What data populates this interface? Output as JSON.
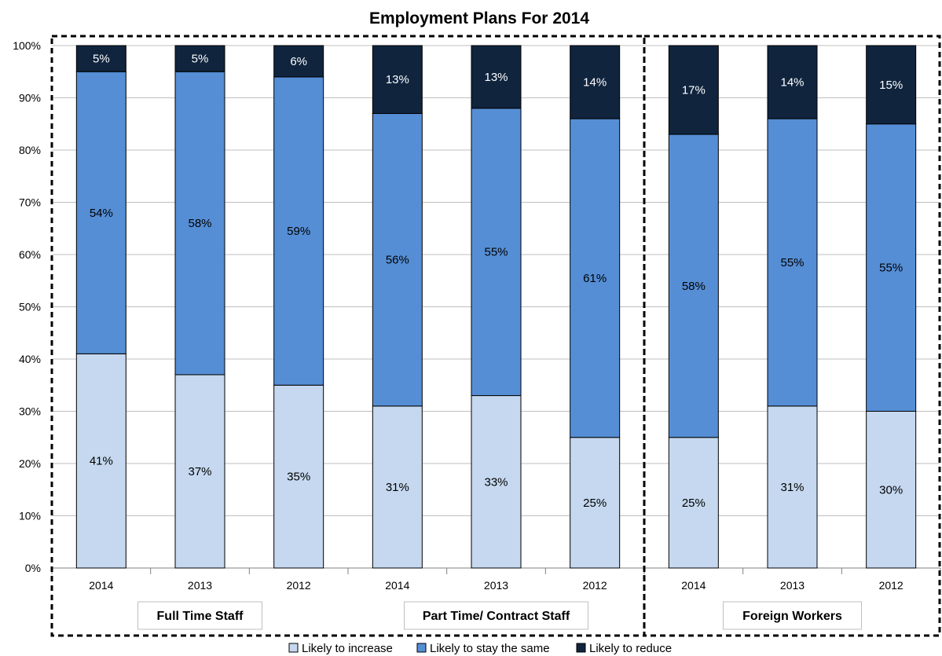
{
  "chart_data": {
    "type": "bar",
    "stacked": true,
    "title": "Employment Plans For 2014",
    "xlabel": "",
    "ylabel": "",
    "ylim": [
      0,
      100
    ],
    "yticks": [
      "0%",
      "10%",
      "20%",
      "30%",
      "40%",
      "50%",
      "60%",
      "70%",
      "80%",
      "90%",
      "100%"
    ],
    "categories": [
      "2014",
      "2013",
      "2012",
      "2014",
      "2013",
      "2012",
      "2014",
      "2013",
      "2012"
    ],
    "groups": [
      {
        "label": "Full Time Staff",
        "categories": [
          0,
          1,
          2
        ]
      },
      {
        "label": "Part Time/ Contract Staff",
        "categories": [
          3,
          4,
          5
        ]
      },
      {
        "label": "Foreign Workers",
        "categories": [
          6,
          7,
          8
        ]
      }
    ],
    "series": [
      {
        "name": "Likely to increase",
        "color": "#c5d8ef",
        "text_color": "#000000",
        "values": [
          41,
          37,
          35,
          31,
          33,
          25,
          25,
          31,
          30
        ],
        "labels": [
          "41%",
          "37%",
          "35%",
          "31%",
          "33%",
          "25%",
          "25%",
          "31%",
          "30%"
        ]
      },
      {
        "name": "Likely to stay the same",
        "color": "#558ed5",
        "text_color": "#000000",
        "values": [
          54,
          58,
          59,
          56,
          55,
          61,
          58,
          55,
          55
        ],
        "labels": [
          "54%",
          "58%",
          "59%",
          "56%",
          "55%",
          "61%",
          "58%",
          "55%",
          "55%"
        ]
      },
      {
        "name": "Likely to reduce",
        "color": "#10243e",
        "text_color": "#ffffff",
        "values": [
          5,
          5,
          6,
          13,
          13,
          14,
          17,
          14,
          15
        ],
        "labels": [
          "5%",
          "5%",
          "6%",
          "13%",
          "13%",
          "14%",
          "17%",
          "14%",
          "15%"
        ]
      }
    ],
    "grid": true,
    "legend_position": "bottom"
  }
}
